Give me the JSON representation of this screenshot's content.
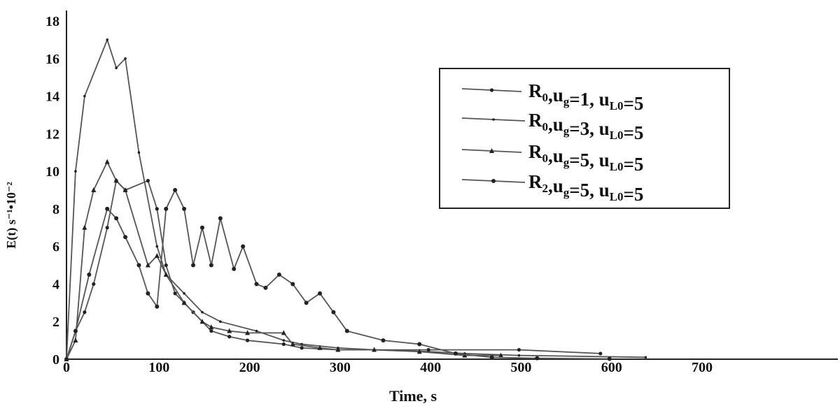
{
  "chart_data": {
    "type": "line",
    "title": "",
    "xlabel": "Time, s",
    "ylabel": "E(t) s⁻¹•10⁻²",
    "xlim": [
      0,
      750
    ],
    "ylim": [
      0,
      19
    ],
    "x_ticks": [
      "0",
      "100",
      "200",
      "300",
      "400",
      "500",
      "600",
      "700"
    ],
    "y_ticks": [
      "0",
      "2",
      "4",
      "6",
      "8",
      "10",
      "12",
      "14",
      "16",
      "18"
    ],
    "grid": false,
    "legend_position": "top-right",
    "legend": [
      {
        "label": "R",
        "sub": "0",
        "text": ",u",
        "sub2": "g",
        "text2": "=1, u",
        "sub3": "L0",
        "text3": "=5"
      },
      {
        "label": "R",
        "sub": "0",
        "text": ",u",
        "sub2": "g",
        "text2": "=3, u",
        "sub3": "L0",
        "text3": "=5"
      },
      {
        "label": "R",
        "sub": "0",
        "text": ",u",
        "sub2": "g",
        "text2": "=5, u",
        "sub3": "L0",
        "text3": "=5"
      },
      {
        "label": "R",
        "sub": "2",
        "text": ",u",
        "sub2": "g",
        "text2": "=5, u",
        "sub3": "L0",
        "text3": "=5"
      }
    ],
    "series": [
      {
        "marker": "circle",
        "points": [
          [
            0,
            0
          ],
          [
            10,
            1.5
          ],
          [
            20,
            2.5
          ],
          [
            30,
            4
          ],
          [
            45,
            7
          ],
          [
            55,
            9.5
          ],
          [
            65,
            9
          ],
          [
            90,
            9.5
          ],
          [
            100,
            8
          ],
          [
            110,
            5
          ],
          [
            120,
            3.5
          ],
          [
            130,
            3
          ],
          [
            140,
            2.5
          ],
          [
            160,
            1.5
          ],
          [
            180,
            1.2
          ],
          [
            200,
            1
          ],
          [
            240,
            0.8
          ],
          [
            260,
            0.6
          ],
          [
            300,
            0.5
          ],
          [
            400,
            0.5
          ],
          [
            500,
            0.5
          ],
          [
            590,
            0.3
          ]
        ]
      },
      {
        "marker": "dot",
        "points": [
          [
            0,
            0
          ],
          [
            10,
            10
          ],
          [
            20,
            14
          ],
          [
            45,
            17
          ],
          [
            55,
            15.5
          ],
          [
            65,
            16
          ],
          [
            80,
            11
          ],
          [
            100,
            6
          ],
          [
            110,
            4.5
          ],
          [
            130,
            3.5
          ],
          [
            150,
            2.5
          ],
          [
            170,
            2
          ],
          [
            210,
            1.5
          ],
          [
            240,
            1
          ],
          [
            260,
            0.8
          ],
          [
            300,
            0.6
          ],
          [
            340,
            0.5
          ],
          [
            400,
            0.4
          ],
          [
            440,
            0.3
          ],
          [
            500,
            0.2
          ],
          [
            640,
            0.1
          ]
        ]
      },
      {
        "marker": "triangle",
        "points": [
          [
            0,
            0
          ],
          [
            10,
            1
          ],
          [
            20,
            7
          ],
          [
            30,
            9
          ],
          [
            45,
            10.5
          ],
          [
            55,
            9.5
          ],
          [
            65,
            9
          ],
          [
            90,
            5
          ],
          [
            100,
            5.5
          ],
          [
            110,
            4.5
          ],
          [
            130,
            3
          ],
          [
            150,
            2
          ],
          [
            160,
            1.7
          ],
          [
            180,
            1.5
          ],
          [
            200,
            1.4
          ],
          [
            240,
            1.4
          ],
          [
            250,
            0.8
          ],
          [
            280,
            0.6
          ],
          [
            300,
            0.5
          ],
          [
            340,
            0.5
          ],
          [
            390,
            0.4
          ],
          [
            440,
            0.2
          ],
          [
            480,
            0.2
          ]
        ]
      },
      {
        "marker": "circle-large",
        "points": [
          [
            0,
            0
          ],
          [
            10,
            1.5
          ],
          [
            25,
            4.5
          ],
          [
            45,
            8
          ],
          [
            55,
            7.5
          ],
          [
            65,
            6.5
          ],
          [
            80,
            5
          ],
          [
            90,
            3.5
          ],
          [
            100,
            2.8
          ],
          [
            110,
            8
          ],
          [
            120,
            9
          ],
          [
            130,
            8
          ],
          [
            140,
            5
          ],
          [
            150,
            7
          ],
          [
            160,
            5
          ],
          [
            170,
            7.5
          ],
          [
            185,
            4.8
          ],
          [
            195,
            6
          ],
          [
            210,
            4
          ],
          [
            220,
            3.8
          ],
          [
            235,
            4.5
          ],
          [
            250,
            4
          ],
          [
            265,
            3
          ],
          [
            280,
            3.5
          ],
          [
            295,
            2.5
          ],
          [
            310,
            1.5
          ],
          [
            350,
            1
          ],
          [
            390,
            0.8
          ],
          [
            430,
            0.3
          ],
          [
            470,
            0.1
          ],
          [
            520,
            0.05
          ],
          [
            600,
            0.02
          ]
        ]
      }
    ]
  }
}
